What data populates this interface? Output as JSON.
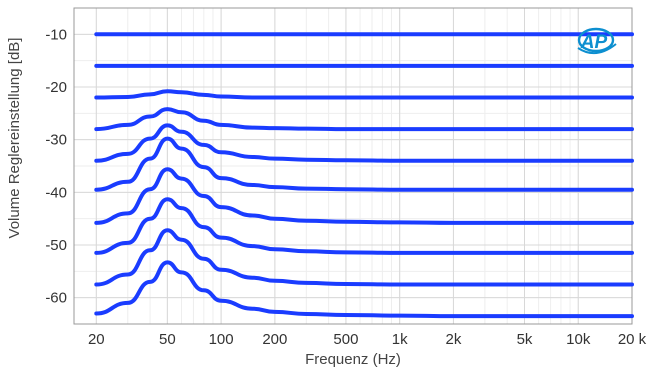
{
  "chart_data": {
    "type": "line",
    "title": "",
    "xlabel": "Frequenz (Hz)",
    "ylabel": "Volume Reglereinstellung [dB]",
    "x_scale": "log",
    "xlim": [
      15,
      20000
    ],
    "ylim": [
      -65,
      -5
    ],
    "x_ticks": [
      20,
      50,
      100,
      200,
      500,
      1000,
      2000,
      5000,
      10000,
      20000
    ],
    "x_tick_labels": [
      "20",
      "50",
      "100",
      "200",
      "500",
      "1k",
      "2k",
      "5k",
      "10k",
      "20 k"
    ],
    "y_ticks": [
      -10,
      -20,
      -30,
      -40,
      -50,
      -60
    ],
    "y_tick_labels": [
      "-10",
      "-20",
      "-30",
      "-40",
      "-50",
      "-60"
    ],
    "grid": true,
    "x": [
      20,
      30,
      40,
      50,
      60,
      80,
      100,
      150,
      200,
      300,
      500,
      1000,
      2000,
      5000,
      10000,
      20000
    ],
    "series": [
      {
        "values": [
          -10,
          -10,
          -10,
          -10,
          -10,
          -10,
          -10,
          -10,
          -10,
          -10,
          -10,
          -10,
          -10,
          -10,
          -10,
          -10
        ]
      },
      {
        "values": [
          -16,
          -16,
          -16,
          -16,
          -16,
          -16,
          -16,
          -16,
          -16,
          -16,
          -16,
          -16,
          -16,
          -16,
          -16,
          -16
        ]
      },
      {
        "values": [
          -22,
          -21.9,
          -21.4,
          -20.8,
          -21,
          -21.5,
          -21.8,
          -22,
          -22,
          -22,
          -22,
          -22,
          -22,
          -22,
          -22,
          -22
        ]
      },
      {
        "values": [
          -28,
          -27.2,
          -25.6,
          -24.2,
          -24.8,
          -26.4,
          -27.2,
          -27.7,
          -27.8,
          -27.9,
          -28,
          -28,
          -28,
          -28,
          -28,
          -28
        ]
      },
      {
        "values": [
          -34,
          -32.7,
          -29.8,
          -27.3,
          -28.5,
          -31,
          -32.4,
          -33.3,
          -33.6,
          -33.8,
          -33.9,
          -34,
          -34,
          -34,
          -34,
          -34
        ]
      },
      {
        "values": [
          -39.5,
          -38,
          -33.6,
          -29.8,
          -31.7,
          -35.2,
          -37.3,
          -38.6,
          -39,
          -39.3,
          -39.4,
          -39.5,
          -39.5,
          -39.5,
          -39.5,
          -39.5
        ]
      },
      {
        "values": [
          -45.8,
          -44,
          -39.4,
          -35.6,
          -37.4,
          -40.7,
          -42.8,
          -44.4,
          -45,
          -45.4,
          -45.6,
          -45.7,
          -45.8,
          -45.8,
          -45.8,
          -45.8
        ]
      },
      {
        "values": [
          -51.5,
          -49.6,
          -45,
          -41.3,
          -43,
          -46.6,
          -48.6,
          -50.2,
          -50.8,
          -51.2,
          -51.4,
          -51.5,
          -51.5,
          -51.5,
          -51.5,
          -51.5
        ]
      },
      {
        "values": [
          -57.5,
          -55.6,
          -51,
          -47.2,
          -49,
          -52.6,
          -54.7,
          -56.2,
          -56.8,
          -57.2,
          -57.4,
          -57.5,
          -57.5,
          -57.5,
          -57.5,
          -57.5
        ]
      },
      {
        "values": [
          -63,
          -61,
          -57,
          -53.3,
          -55.2,
          -58.6,
          -60.6,
          -62.1,
          -62.7,
          -63.1,
          -63.3,
          -63.4,
          -63.5,
          -63.5,
          -63.5,
          -63.5
        ]
      }
    ],
    "line_color": "#1a3cff"
  },
  "logo": {
    "text": "AP",
    "color": "#0d8fd0"
  }
}
